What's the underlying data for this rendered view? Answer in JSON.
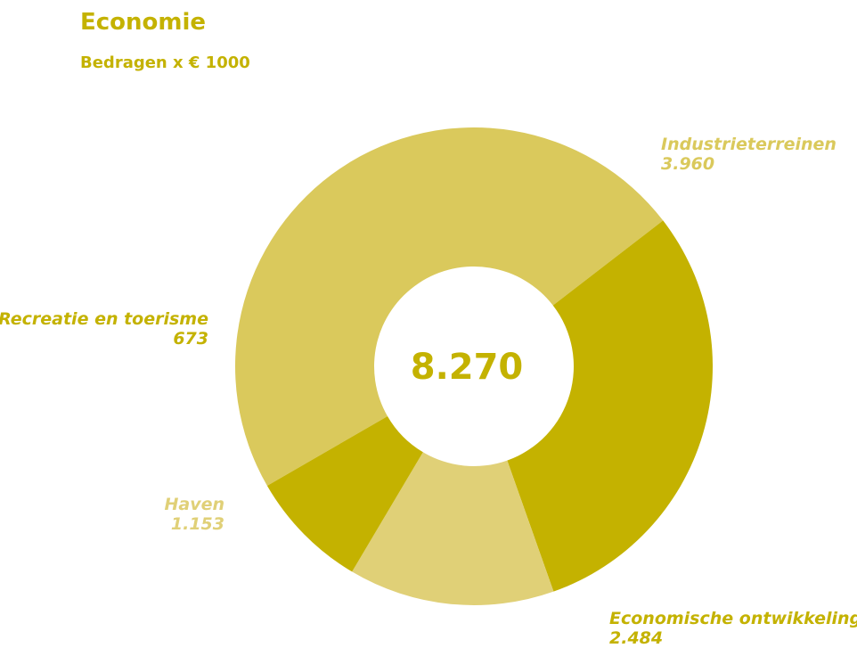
{
  "title": "Economie",
  "subtitle": "Bedragen x € 1000",
  "chart_data": {
    "type": "pie",
    "title": "Economie",
    "subtitle": "Bedragen x € 1000",
    "total_label": "8.270",
    "total": 8270,
    "donut": true,
    "slices": [
      {
        "label": "Industrieterreinen",
        "value": 3960,
        "value_label": "3.960",
        "color": "#dac95c",
        "label_color": "#dac95c"
      },
      {
        "label": "Economische ontwikkeling",
        "value": 2484,
        "value_label": "2.484",
        "color": "#c4b200",
        "label_color": "#c4b200"
      },
      {
        "label": "Haven",
        "value": 1153,
        "value_label": "1.153",
        "color": "#e0d077",
        "label_color": "#e0d077"
      },
      {
        "label": "Recreatie en toerisme",
        "value": 673,
        "value_label": "673",
        "color": "#c4b200",
        "label_color": "#c4b200"
      }
    ],
    "legend": "none"
  }
}
